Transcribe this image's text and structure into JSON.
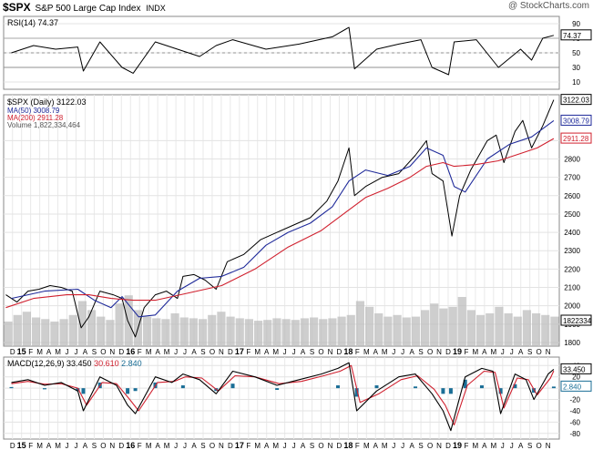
{
  "header": {
    "symbol": "$SPX",
    "name": "S&P 500 Large Cap Index",
    "exchange": "INDX",
    "credit": "@ StockCharts.com"
  },
  "colors": {
    "price": "#000000",
    "ma50": "#1f2a9a",
    "ma200": "#d0202e",
    "volume": "#b9b9b9",
    "macd_line": "#000000",
    "signal_line": "#d0202e",
    "histogram": "#1a6e96",
    "rsi_line": "#000000",
    "rsi_fill": "#2e8b2e"
  },
  "chart_data": [
    {
      "type": "line",
      "panel": "rsi",
      "legend": "RSI(14) 74.37",
      "last_value_label": "74.37",
      "ylim": [
        0,
        100
      ],
      "yticks": [
        10,
        30,
        50,
        70,
        90
      ],
      "reference_lines": [
        30,
        50,
        70
      ],
      "x": [
        2015.0,
        2015.2,
        2015.4,
        2015.6,
        2015.65,
        2015.8,
        2016.0,
        2016.1,
        2016.3,
        2016.5,
        2016.7,
        2016.85,
        2017.0,
        2017.3,
        2017.6,
        2017.9,
        2018.05,
        2018.1,
        2018.3,
        2018.5,
        2018.7,
        2018.8,
        2018.95,
        2019.0,
        2019.2,
        2019.4,
        2019.6,
        2019.7,
        2019.8,
        2019.9
      ],
      "values": [
        50,
        60,
        55,
        58,
        25,
        65,
        30,
        22,
        65,
        55,
        45,
        60,
        68,
        55,
        62,
        72,
        85,
        28,
        55,
        62,
        68,
        30,
        20,
        65,
        68,
        30,
        55,
        40,
        70,
        74
      ]
    },
    {
      "type": "line",
      "panel": "price",
      "legend": {
        "price": "$SPX (Daily) 3122.03",
        "ma50": "MA(50) 3008.79",
        "ma200": "MA(200) 2911.28",
        "volume": "Volume 1,822,334,464"
      },
      "ylim": [
        1780,
        3150
      ],
      "yticks": [
        1800,
        1900,
        2000,
        2100,
        2200,
        2300,
        2400,
        2500,
        2600,
        2700,
        2800,
        2900
      ],
      "last_labels": {
        "price": "3122.03",
        "ma50": "3008.79",
        "ma200": "2911.28",
        "volume": "1822334"
      },
      "x_tick_labels": [
        "D",
        "15",
        "F",
        "M",
        "A",
        "M",
        "J",
        "J",
        "A",
        "S",
        "O",
        "N",
        "D",
        "16",
        "F",
        "M",
        "A",
        "M",
        "J",
        "J",
        "A",
        "S",
        "O",
        "N",
        "D",
        "17",
        "F",
        "M",
        "A",
        "M",
        "J",
        "J",
        "A",
        "S",
        "O",
        "N",
        "D",
        "18",
        "F",
        "M",
        "A",
        "M",
        "J",
        "J",
        "A",
        "S",
        "O",
        "N",
        "D",
        "19",
        "F",
        "M",
        "A",
        "M",
        "J",
        "J",
        "A",
        "S",
        "O",
        "N"
      ],
      "series": [
        {
          "name": "$SPX",
          "x": [
            2014.95,
            2015.05,
            2015.15,
            2015.25,
            2015.35,
            2015.45,
            2015.55,
            2015.63,
            2015.7,
            2015.8,
            2015.92,
            2016.0,
            2016.05,
            2016.12,
            2016.2,
            2016.3,
            2016.4,
            2016.5,
            2016.55,
            2016.65,
            2016.75,
            2016.85,
            2016.95,
            2017.1,
            2017.25,
            2017.4,
            2017.55,
            2017.7,
            2017.85,
            2017.95,
            2018.05,
            2018.1,
            2018.2,
            2018.35,
            2018.5,
            2018.65,
            2018.75,
            2018.8,
            2018.9,
            2018.98,
            2019.05,
            2019.15,
            2019.3,
            2019.38,
            2019.45,
            2019.55,
            2019.62,
            2019.7,
            2019.8,
            2019.9
          ],
          "values": [
            2060,
            2020,
            2080,
            2090,
            2110,
            2100,
            2080,
            1880,
            1940,
            2080,
            2060,
            2040,
            1920,
            1830,
            1990,
            2060,
            2080,
            2040,
            2160,
            2170,
            2140,
            2090,
            2240,
            2280,
            2360,
            2400,
            2440,
            2480,
            2570,
            2680,
            2860,
            2600,
            2650,
            2700,
            2720,
            2820,
            2900,
            2720,
            2680,
            2380,
            2600,
            2740,
            2900,
            2930,
            2780,
            2950,
            3010,
            2860,
            2980,
            3122
          ]
        },
        {
          "name": "MA(50)",
          "x": [
            2015.0,
            2015.3,
            2015.6,
            2015.75,
            2015.9,
            2016.0,
            2016.15,
            2016.3,
            2016.5,
            2016.7,
            2016.9,
            2017.1,
            2017.3,
            2017.5,
            2017.7,
            2017.9,
            2018.05,
            2018.2,
            2018.4,
            2018.6,
            2018.75,
            2018.9,
            2019.0,
            2019.1,
            2019.3,
            2019.5,
            2019.7,
            2019.9
          ],
          "values": [
            2040,
            2080,
            2090,
            2030,
            1990,
            2050,
            1940,
            1950,
            2080,
            2150,
            2160,
            2210,
            2330,
            2400,
            2450,
            2540,
            2680,
            2740,
            2710,
            2760,
            2860,
            2820,
            2650,
            2620,
            2800,
            2880,
            2920,
            3009
          ]
        },
        {
          "name": "MA(200)",
          "x": [
            2014.95,
            2015.2,
            2015.5,
            2015.7,
            2015.9,
            2016.1,
            2016.3,
            2016.6,
            2016.9,
            2017.2,
            2017.5,
            2017.8,
            2018.0,
            2018.2,
            2018.4,
            2018.6,
            2018.75,
            2018.9,
            2019.0,
            2019.2,
            2019.4,
            2019.6,
            2019.75,
            2019.9
          ],
          "values": [
            1990,
            2040,
            2060,
            2060,
            2040,
            2030,
            2030,
            2070,
            2110,
            2200,
            2320,
            2410,
            2500,
            2590,
            2640,
            2700,
            2760,
            2780,
            2760,
            2770,
            2790,
            2830,
            2860,
            2911
          ]
        }
      ],
      "volume": {
        "scale": "relative",
        "values": [
          0.3,
          0.38,
          0.42,
          0.35,
          0.33,
          0.3,
          0.33,
          0.38,
          0.55,
          0.44,
          0.36,
          0.32,
          0.52,
          0.62,
          0.44,
          0.36,
          0.34,
          0.33,
          0.4,
          0.35,
          0.34,
          0.33,
          0.38,
          0.42,
          0.36,
          0.34,
          0.33,
          0.31,
          0.32,
          0.34,
          0.33,
          0.32,
          0.34,
          0.35,
          0.33,
          0.34,
          0.36,
          0.38,
          0.55,
          0.48,
          0.4,
          0.36,
          0.38,
          0.35,
          0.36,
          0.44,
          0.52,
          0.46,
          0.48,
          0.6,
          0.44,
          0.38,
          0.4,
          0.48,
          0.4,
          0.36,
          0.44,
          0.4,
          0.38,
          0.36
        ]
      }
    },
    {
      "type": "line",
      "panel": "macd",
      "legend": {
        "macd": "MACD(12,26,9) 33.450",
        "signal": "30.610",
        "hist": "2.840"
      },
      "last_labels": {
        "macd": "33.450",
        "hist": "2.840"
      },
      "ylim": [
        -90,
        55
      ],
      "yticks": [
        -80,
        -60,
        -40,
        -20,
        0,
        20,
        40
      ],
      "x_tick_labels": [
        "D",
        "15",
        "F",
        "M",
        "A",
        "M",
        "J",
        "J",
        "A",
        "S",
        "O",
        "N",
        "D",
        "16",
        "F",
        "M",
        "A",
        "M",
        "J",
        "J",
        "A",
        "S",
        "O",
        "N",
        "D",
        "17",
        "F",
        "M",
        "A",
        "M",
        "J",
        "J",
        "A",
        "S",
        "O",
        "N",
        "D",
        "18",
        "F",
        "M",
        "A",
        "M",
        "J",
        "J",
        "A",
        "S",
        "O",
        "N",
        "D",
        "19",
        "F",
        "M",
        "A",
        "M",
        "J",
        "J",
        "A",
        "S",
        "O",
        "N"
      ],
      "series": [
        {
          "name": "MACD(12,26,9)",
          "x": [
            2015.0,
            2015.15,
            2015.3,
            2015.45,
            2015.6,
            2015.65,
            2015.8,
            2015.95,
            2016.05,
            2016.12,
            2016.3,
            2016.45,
            2016.55,
            2016.7,
            2016.85,
            2017.0,
            2017.2,
            2017.4,
            2017.6,
            2017.8,
            2017.95,
            2018.05,
            2018.12,
            2018.3,
            2018.5,
            2018.65,
            2018.8,
            2018.9,
            2018.97,
            2019.1,
            2019.25,
            2019.35,
            2019.42,
            2019.55,
            2019.65,
            2019.72,
            2019.85,
            2019.9
          ],
          "values": [
            10,
            15,
            5,
            10,
            -5,
            -40,
            20,
            5,
            -30,
            -45,
            20,
            10,
            25,
            15,
            -10,
            30,
            20,
            5,
            15,
            25,
            35,
            45,
            -40,
            -5,
            20,
            25,
            -10,
            -40,
            -75,
            20,
            35,
            30,
            -45,
            25,
            15,
            -20,
            25,
            33.45
          ]
        },
        {
          "name": "signal",
          "x": [
            2015.0,
            2015.15,
            2015.3,
            2015.45,
            2015.6,
            2015.68,
            2015.82,
            2015.95,
            2016.07,
            2016.15,
            2016.32,
            2016.47,
            2016.57,
            2016.72,
            2016.87,
            2017.02,
            2017.2,
            2017.42,
            2017.62,
            2017.82,
            2017.97,
            2018.07,
            2018.15,
            2018.32,
            2018.52,
            2018.67,
            2018.82,
            2018.92,
            2019.0,
            2019.12,
            2019.27,
            2019.37,
            2019.45,
            2019.57,
            2019.67,
            2019.75,
            2019.87,
            2019.9
          ],
          "values": [
            8,
            12,
            7,
            8,
            0,
            -30,
            10,
            8,
            -20,
            -40,
            10,
            12,
            20,
            18,
            -5,
            22,
            20,
            8,
            12,
            22,
            30,
            40,
            -25,
            -10,
            15,
            22,
            -2,
            -30,
            -65,
            5,
            30,
            28,
            -35,
            18,
            15,
            -12,
            18,
            30.61
          ]
        }
      ],
      "histogram": {
        "x": [
          2015.0,
          2015.3,
          2015.6,
          2015.65,
          2015.8,
          2016.05,
          2016.12,
          2016.3,
          2016.55,
          2016.85,
          2017.0,
          2017.4,
          2017.95,
          2018.12,
          2018.3,
          2018.65,
          2018.9,
          2018.97,
          2019.1,
          2019.25,
          2019.42,
          2019.55,
          2019.72,
          2019.9
        ],
        "values": [
          2,
          -2,
          -5,
          -10,
          10,
          -10,
          -5,
          10,
          5,
          -5,
          8,
          -3,
          5,
          -15,
          5,
          3,
          -10,
          -10,
          15,
          5,
          -10,
          7,
          -8,
          2.84
        ]
      }
    }
  ]
}
